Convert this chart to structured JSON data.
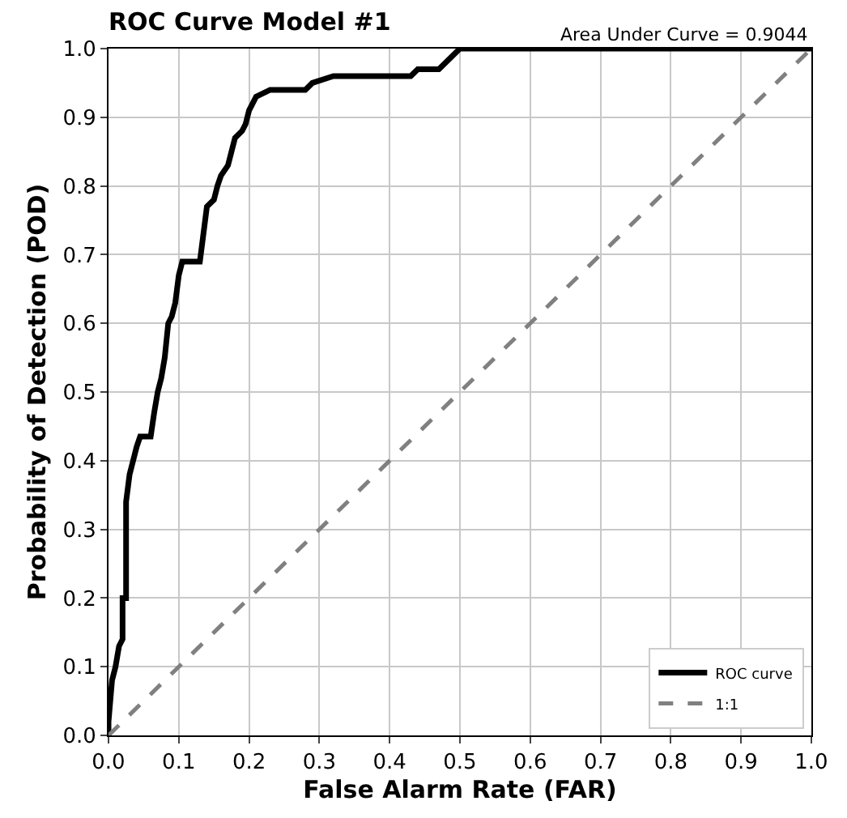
{
  "chart_data": {
    "type": "line",
    "title": "ROC Curve Model #1",
    "xlabel": "False Alarm Rate (FAR)",
    "ylabel": "Probability of Detection (POD)",
    "annotations": [
      "Area Under Curve = 0.9044"
    ],
    "series": [
      {
        "name": "ROC curve",
        "color": "#000000",
        "line_style": "solid",
        "x": [
          0,
          0,
          0.005,
          0.01,
          0.015,
          0.02,
          0.02,
          0.025,
          0.025,
          0.03,
          0.035,
          0.04,
          0.045,
          0.06,
          0.065,
          0.07,
          0.075,
          0.08,
          0.085,
          0.09,
          0.095,
          0.1,
          0.105,
          0.13,
          0.135,
          0.14,
          0.15,
          0.155,
          0.16,
          0.17,
          0.175,
          0.18,
          0.19,
          0.195,
          0.2,
          0.21,
          0.23,
          0.28,
          0.29,
          0.32,
          0.43,
          0.44,
          0.47,
          0.48,
          0.49,
          0.5,
          1
        ],
        "values": [
          0,
          0.02,
          0.08,
          0.1,
          0.13,
          0.14,
          0.2,
          0.2,
          0.34,
          0.38,
          0.4,
          0.42,
          0.435,
          0.435,
          0.47,
          0.5,
          0.52,
          0.55,
          0.6,
          0.61,
          0.63,
          0.67,
          0.69,
          0.69,
          0.73,
          0.77,
          0.78,
          0.8,
          0.815,
          0.83,
          0.85,
          0.87,
          0.88,
          0.89,
          0.91,
          0.93,
          0.94,
          0.94,
          0.95,
          0.96,
          0.96,
          0.97,
          0.97,
          0.98,
          0.99,
          1,
          1
        ]
      },
      {
        "name": "1:1",
        "color": "#808080",
        "line_style": "dashed",
        "x": [
          0,
          1
        ],
        "values": [
          0,
          1
        ]
      }
    ],
    "xlim": [
      0,
      1
    ],
    "ylim": [
      0,
      1
    ],
    "xticks": [
      {
        "value": 0,
        "label": "0.0"
      },
      0.1,
      0.2,
      0.3,
      0.4,
      0.5,
      0.6,
      0.7,
      0.8,
      0.9,
      {
        "value": 1,
        "label": "1.0"
      }
    ],
    "yticks": [
      {
        "value": 0,
        "label": "0.0"
      },
      0.1,
      0.2,
      0.3,
      0.4,
      0.5,
      0.6,
      0.7,
      0.8,
      0.9,
      {
        "value": 1,
        "label": "1.0"
      }
    ],
    "grid": true,
    "legend": "bottom right",
    "marker": "none"
  }
}
